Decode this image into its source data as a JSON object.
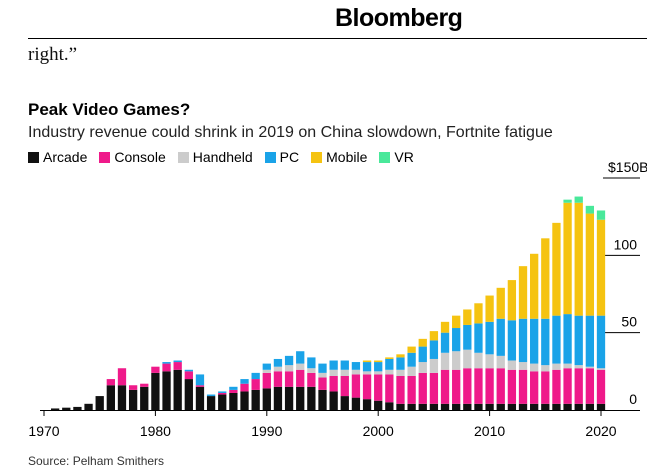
{
  "header": {
    "brand": "Bloomberg",
    "quote_fragment": "right.”"
  },
  "source": "Source: Pelham Smithers",
  "colors": {
    "Arcade": "#111111",
    "Console": "#ef1a8a",
    "Handheld": "#cccccc",
    "PC": "#1aa3e8",
    "Mobile": "#f5c311",
    "VR": "#49e89a"
  },
  "chart_data": {
    "type": "bar",
    "stacked": true,
    "title": "Peak Video Games?",
    "subtitle": "Industry revenue could shrink in 2019 on China slowdown, Fortnite fatigue",
    "ylim": [
      0,
      150
    ],
    "yticks": [
      {
        "value": 0,
        "label": "0"
      },
      {
        "value": 50,
        "label": "50"
      },
      {
        "value": 100,
        "label": "100"
      },
      {
        "value": 150,
        "label": "$150B"
      }
    ],
    "xticks": [
      {
        "value": 1970,
        "label": "1970"
      },
      {
        "value": 1980,
        "label": "1980"
      },
      {
        "value": 1990,
        "label": "1990"
      },
      {
        "value": 2000,
        "label": "2000"
      },
      {
        "value": 2010,
        "label": "2010"
      },
      {
        "value": 2020,
        "label": "2020"
      }
    ],
    "years": [
      1971,
      1972,
      1973,
      1974,
      1975,
      1976,
      1977,
      1978,
      1979,
      1980,
      1981,
      1982,
      1983,
      1984,
      1985,
      1986,
      1987,
      1988,
      1989,
      1990,
      1991,
      1992,
      1993,
      1994,
      1995,
      1996,
      1997,
      1998,
      1999,
      2000,
      2001,
      2002,
      2003,
      2004,
      2005,
      2006,
      2007,
      2008,
      2009,
      2010,
      2011,
      2012,
      2013,
      2014,
      2015,
      2016,
      2017,
      2018,
      2019,
      2020
    ],
    "series": [
      {
        "name": "Arcade",
        "values": [
          1,
          1.5,
          2,
          4,
          9,
          16,
          16,
          13,
          15,
          24,
          25,
          26,
          20,
          15,
          9,
          10,
          11,
          12,
          13,
          14,
          15,
          15,
          15,
          15,
          13,
          12,
          9,
          8,
          7,
          6,
          5,
          4,
          4,
          4,
          4,
          4,
          4,
          4,
          4,
          4,
          4,
          4,
          4,
          4,
          4,
          4,
          4,
          4,
          4,
          4
        ]
      },
      {
        "name": "Console",
        "values": [
          0,
          0,
          0,
          0,
          0,
          4,
          11,
          3,
          2,
          4,
          5,
          5,
          5,
          1,
          0,
          1,
          2,
          5,
          7,
          10,
          10,
          10,
          11,
          9,
          8,
          10,
          13,
          15,
          16,
          17,
          18,
          18,
          18,
          20,
          20,
          22,
          22,
          23,
          23,
          23,
          23,
          22,
          22,
          21,
          21,
          22,
          23,
          23,
          23,
          22
        ]
      },
      {
        "name": "Handheld",
        "values": [
          0,
          0,
          0,
          0,
          0,
          0,
          0,
          0,
          0,
          0,
          0,
          0,
          0,
          0,
          0,
          0,
          0,
          0,
          0,
          2,
          3,
          4,
          4,
          3,
          3,
          4,
          4,
          3,
          2,
          2,
          3,
          4,
          6,
          7,
          9,
          11,
          12,
          12,
          10,
          9,
          8,
          6,
          5,
          5,
          4,
          4,
          3,
          2,
          1,
          1
        ]
      },
      {
        "name": "PC",
        "values": [
          0,
          0,
          0,
          0,
          0,
          0,
          0,
          0,
          0,
          0,
          1,
          1,
          1,
          7,
          1,
          1,
          2,
          3,
          4,
          4,
          5,
          6,
          8,
          7,
          6,
          6,
          6,
          5,
          6,
          6,
          7,
          8,
          9,
          10,
          12,
          13,
          15,
          16,
          19,
          21,
          24,
          26,
          28,
          29,
          30,
          31,
          32,
          32,
          33,
          34
        ]
      },
      {
        "name": "Mobile",
        "values": [
          0,
          0,
          0,
          0,
          0,
          0,
          0,
          0,
          0,
          0,
          0,
          0,
          0,
          0,
          0,
          0,
          0,
          0,
          0,
          0,
          0,
          0,
          0,
          0,
          0,
          0,
          0,
          0,
          1,
          1,
          1,
          2,
          4,
          5,
          6,
          7,
          8,
          10,
          13,
          17,
          20,
          26,
          34,
          42,
          52,
          60,
          72,
          73,
          66,
          62
        ]
      },
      {
        "name": "VR",
        "values": [
          0,
          0,
          0,
          0,
          0,
          0,
          0,
          0,
          0,
          0,
          0,
          0,
          0,
          0,
          0,
          0,
          0,
          0,
          0,
          0,
          0,
          0,
          0,
          0,
          0,
          0,
          0,
          0,
          0,
          0,
          0,
          0,
          0,
          0,
          0,
          0,
          0,
          0,
          0,
          0,
          0,
          0,
          0,
          0,
          0,
          0,
          2,
          4,
          5,
          6
        ]
      }
    ]
  }
}
